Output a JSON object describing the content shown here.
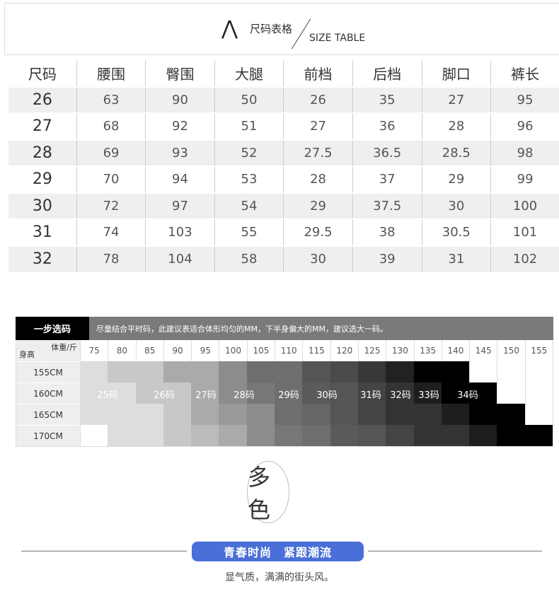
{
  "title": {
    "cn": "尺码表格",
    "en": "SIZE TABLE",
    "caret": "⋀"
  },
  "size_table": {
    "headers": [
      "尺码",
      "腰围",
      "臀围",
      "大腿",
      "前档",
      "后档",
      "脚口",
      "裤长"
    ],
    "rows": [
      [
        "26",
        "63",
        "90",
        "50",
        "26",
        "35",
        "27",
        "95"
      ],
      [
        "27",
        "68",
        "92",
        "51",
        "27",
        "36",
        "28",
        "96"
      ],
      [
        "28",
        "69",
        "93",
        "52",
        "27.5",
        "36.5",
        "28.5",
        "98"
      ],
      [
        "29",
        "70",
        "94",
        "53",
        "28",
        "37",
        "29",
        "99"
      ],
      [
        "30",
        "72",
        "97",
        "54",
        "29",
        "37.5",
        "30",
        "100"
      ],
      [
        "31",
        "74",
        "103",
        "55",
        "29.5",
        "38",
        "30.5",
        "101"
      ],
      [
        "32",
        "78",
        "104",
        "58",
        "30",
        "39",
        "31",
        "102"
      ]
    ]
  },
  "guide": {
    "label": "一步选码",
    "note": "尽量结合平时码，此建议表适合体形均匀的MM，下半身偏大的MM，建议选大一码。",
    "corner_weight": "体重/斤",
    "corner_height": "身高",
    "weights": [
      "75",
      "80",
      "85",
      "90",
      "95",
      "100",
      "105",
      "110",
      "115",
      "120",
      "125",
      "130",
      "135",
      "140",
      "145",
      "150",
      "155"
    ],
    "heights": [
      "155CM",
      "160CM",
      "165CM",
      "170CM"
    ],
    "shades": [
      [
        "#dddddd",
        "#c8c8c8",
        "#c8c8c8",
        "#aaaaaa",
        "#aaaaaa",
        "#8c8c8c",
        "#6e6e6e",
        "#6e6e6e",
        "#555555",
        "#4a4a4a",
        "#383838",
        "#222222",
        "#000000",
        "#000000",
        "#ffffff",
        "#ffffff",
        "#ffffff"
      ],
      [
        "#dddddd",
        "#dddddd",
        "#c8c8c8",
        "#c8c8c8",
        "#aaaaaa",
        "#8c8c8c",
        "#777777",
        "#6e6e6e",
        "#5a5a5a",
        "#555555",
        "#444444",
        "#333333",
        "#1e1e1e",
        "#000000",
        "#000000",
        "#ffffff",
        "#ffffff"
      ],
      [
        "#dddddd",
        "#dddddd",
        "#dddddd",
        "#c8c8c8",
        "#aaaaaa",
        "#999999",
        "#8c8c8c",
        "#6e6e6e",
        "#666666",
        "#555555",
        "#444444",
        "#333333",
        "#333333",
        "#1e1e1e",
        "#000000",
        "#000000",
        "#ffffff"
      ],
      [
        "#ffffff",
        "#dddddd",
        "#dddddd",
        "#c8c8c8",
        "#bbbbbb",
        "#aaaaaa",
        "#8c8c8c",
        "#777777",
        "#6e6e6e",
        "#5a5a5a",
        "#555555",
        "#444444",
        "#333333",
        "#333333",
        "#1e1e1e",
        "#000000",
        "#000000"
      ]
    ],
    "sizes": [
      "25码",
      "26码",
      "27码",
      "28码",
      "29码",
      "30码",
      "31码",
      "32码",
      "33码",
      "34码"
    ]
  },
  "color_badge": "多色",
  "banner": "青春时尚　紧跟潮流",
  "subtitle": "显气质，满满的街头风。",
  "accent": "#4a6fd8"
}
